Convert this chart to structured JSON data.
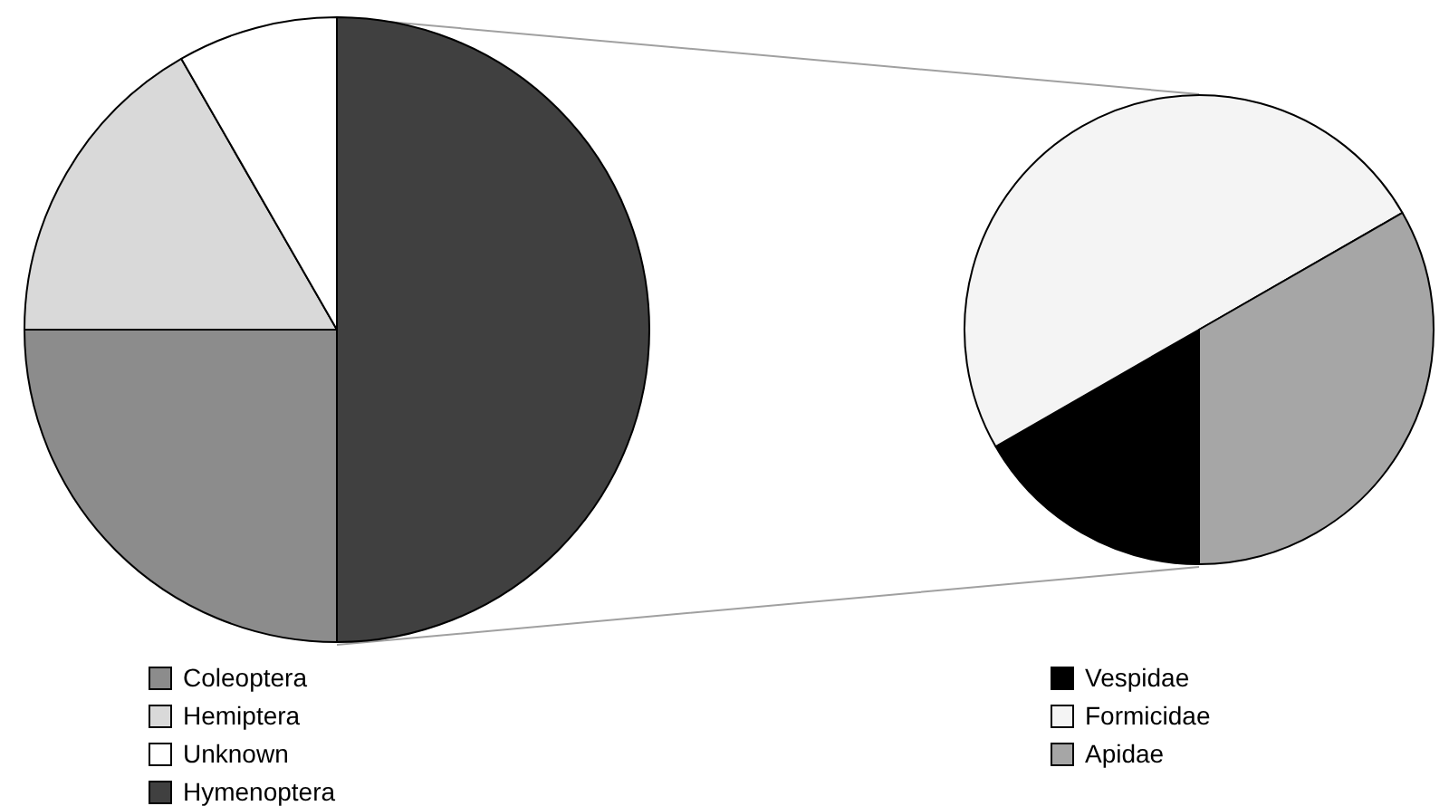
{
  "chart_data": [
    {
      "type": "pie",
      "categories": [
        "Coleoptera",
        "Hemiptera",
        "Unknown",
        "Hymenoptera"
      ],
      "values": [
        25,
        16.7,
        8.3,
        50
      ],
      "colors": [
        "#8c8c8c",
        "#d9d9d9",
        "#ffffff",
        "#404040"
      ],
      "legend": "bottom"
    },
    {
      "type": "pie",
      "categories": [
        "Vespidae",
        "Formicidae",
        "Apidae"
      ],
      "values": [
        16.7,
        50,
        33.3
      ],
      "colors": [
        "#000000",
        "#f4f4f4",
        "#a6a6a6"
      ],
      "legend": "bottom"
    }
  ]
}
